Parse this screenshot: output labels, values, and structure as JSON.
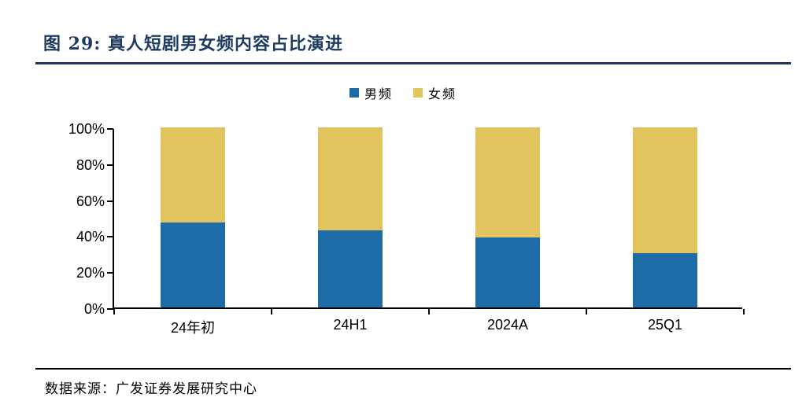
{
  "figure": {
    "title": "图 29:  真人短剧男女频内容占比演进",
    "source": "数据来源：广发证券发展研究中心"
  },
  "colors": {
    "male_blue": "#1E6CA7",
    "female_gold": "#E2C45F",
    "title_navy": "#1E3A5F",
    "rule_navy": "#1F3864",
    "axis_black": "#000000"
  },
  "chart_data": {
    "type": "bar",
    "stacked": true,
    "title": "真人短剧男女频内容占比演进",
    "categories": [
      "24年初",
      "24H1",
      "2024A",
      "25Q1"
    ],
    "series": [
      {
        "name": "男频",
        "color": "#1E6CA7",
        "values": [
          47,
          43,
          39,
          30
        ]
      },
      {
        "name": "女频",
        "color": "#E2C45F",
        "values": [
          53,
          57,
          61,
          70
        ]
      }
    ],
    "xlabel": "",
    "ylabel": "",
    "ylim": [
      0,
      100
    ],
    "yticks": [
      "0%",
      "20%",
      "40%",
      "60%",
      "80%",
      "100%"
    ],
    "unit": "percent",
    "grid": false,
    "legend_position": "top-center"
  }
}
